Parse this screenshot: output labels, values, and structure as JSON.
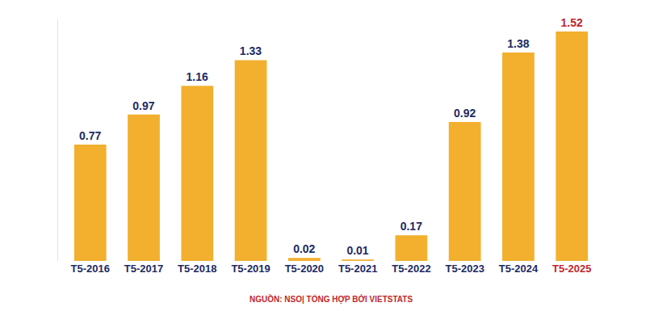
{
  "chart_data": {
    "type": "bar",
    "categories": [
      "T5-2016",
      "T5-2017",
      "T5-2018",
      "T5-2019",
      "T5-2020",
      "T5-2021",
      "T5-2022",
      "T5-2023",
      "T5-2024",
      "T5-2025"
    ],
    "values": [
      0.77,
      0.97,
      1.16,
      1.33,
      0.02,
      0.01,
      0.17,
      0.92,
      1.38,
      1.52
    ],
    "color": "#f2b02e",
    "ylim": [
      0,
      1.6
    ],
    "grid": false,
    "data_labels": true,
    "tick_labels": "x",
    "annotations": [
      "NGUỒN: NSO| TỔNG HỢP BỞI VIETSTATS"
    ]
  }
}
